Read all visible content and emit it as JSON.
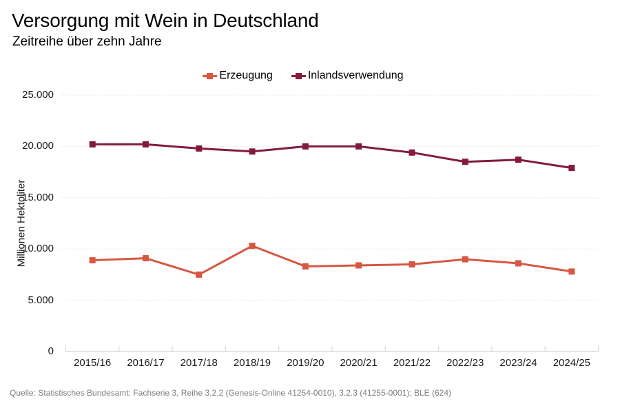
{
  "title": "Versorgung mit Wein in Deutschland",
  "subtitle": "Zeitreihe über zehn Jahre",
  "source": "Quelle: Statistisches Bundesamt: Fachserie 3, Reihe 3.2.2 (Genesis-Online 41254-0010), 3.2.3 (41255-0001); BLE (624)",
  "legend": {
    "items": [
      "Erzeugung",
      "Inlandsverwendung"
    ]
  },
  "chart_data": {
    "type": "line",
    "categories": [
      "2015/16",
      "2016/17",
      "2017/18",
      "2018/19",
      "2019/20",
      "2020/21",
      "2021/22",
      "2022/23",
      "2023/24",
      "2024/25"
    ],
    "series": [
      {
        "name": "Erzeugung",
        "color": "#D65742",
        "marker": "square",
        "values": [
          8900,
          9100,
          7500,
          10300,
          8300,
          8400,
          8500,
          9000,
          8600,
          7800
        ]
      },
      {
        "name": "Inlandsverwendung",
        "color": "#821A3C",
        "marker": "square",
        "values": [
          20200,
          20200,
          19800,
          19500,
          20000,
          20000,
          19400,
          18500,
          18700,
          17900
        ]
      }
    ],
    "title": "Versorgung mit Wein in Deutschland",
    "subtitle": "Zeitreihe über zehn Jahre",
    "xlabel": "",
    "ylabel": "Millionen Hektoliter",
    "ylim": [
      0,
      25000
    ],
    "yticks": [
      0,
      5000,
      10000,
      15000,
      20000,
      25000
    ],
    "ytick_labels": [
      "0",
      "5.000",
      "10.000",
      "15.000",
      "20.000",
      "25.000"
    ],
    "grid": "horizontal-dotted",
    "legend_position": "top-center",
    "colors": {
      "gridline": "#E1E1E1",
      "axis": "#D4D4D4",
      "tick_label": "#1a1a1a",
      "source_text": "#7d7d7d"
    }
  }
}
